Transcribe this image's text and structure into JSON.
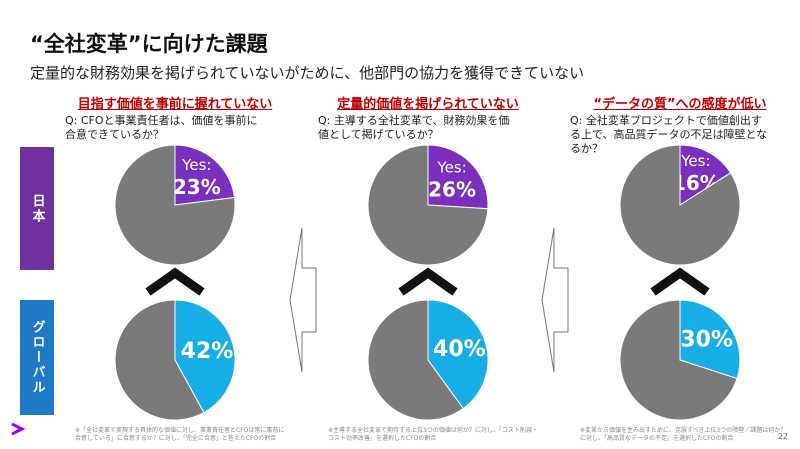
{
  "title": "“全社変革”に向けた課題",
  "subtitle": "定量的な財務効果を掲げられていないがために、他部門の協力を獲得できていない",
  "row_labels": [
    "日本",
    "グローバル"
  ],
  "columns": [
    {
      "heading": "目指す価値を事前に握れていない",
      "question": "Q: CFOと事業責任者は、価値を事前に合意できているか？",
      "footnote": "※「全社変革で実現する具体的な価値に対し、事業責任者とCFOは常に事前に合意している」に合意するか？に対し、「完全に合意」と答えたCFOの割合"
    },
    {
      "heading": "定量的価値を掲げられていない",
      "question": "Q: 主導する全社変革で、財務効果を価値として掲げているか？",
      "footnote": "※主導する全社変革で期待する上位3つの価値は何か？に対し、「コスト削減・コスト効率改善」を選択したCFOの割合"
    },
    {
      "heading": "“データの質”への感度が低い",
      "question": "Q: 全社変革プロジェクトで価値創出する上で、高品質データの不足は障壁となるか？",
      "footnote": "※変革から価値を生み出すために、克服すべき上位3つの障壁／課題は何か？に対し、「高品質なデータの不足」を選択したCFOの割合"
    }
  ],
  "page_number": "22",
  "chart_data": [
    {
      "type": "pie",
      "categories": [
        "Yes:",
        null
      ],
      "values": [
        23,
        77
      ],
      "value_labels": [
        "23%",
        null
      ],
      "colors": [
        "#7b2fbe",
        "#7a7a7a"
      ]
    },
    {
      "type": "pie",
      "categories": [
        "Yes:",
        null
      ],
      "values": [
        26,
        74
      ],
      "value_labels": [
        "26%",
        null
      ],
      "colors": [
        "#7b2fbe",
        "#7a7a7a"
      ]
    },
    {
      "type": "pie",
      "categories": [
        "Yes:",
        null
      ],
      "values": [
        16,
        84
      ],
      "value_labels": [
        "16%",
        null
      ],
      "colors": [
        "#7b2fbe",
        "#7a7a7a"
      ]
    },
    {
      "type": "pie",
      "values": [
        42,
        58
      ],
      "value_labels": [
        "42%",
        null
      ],
      "colors": [
        "#17aee8",
        "#7a7a7a"
      ]
    },
    {
      "type": "pie",
      "values": [
        40,
        60
      ],
      "value_labels": [
        "40%",
        null
      ],
      "colors": [
        "#17aee8",
        "#7a7a7a"
      ]
    },
    {
      "type": "pie",
      "values": [
        30,
        70
      ],
      "value_labels": [
        "30%",
        null
      ],
      "colors": [
        "#17aee8",
        "#7a7a7a"
      ]
    }
  ]
}
